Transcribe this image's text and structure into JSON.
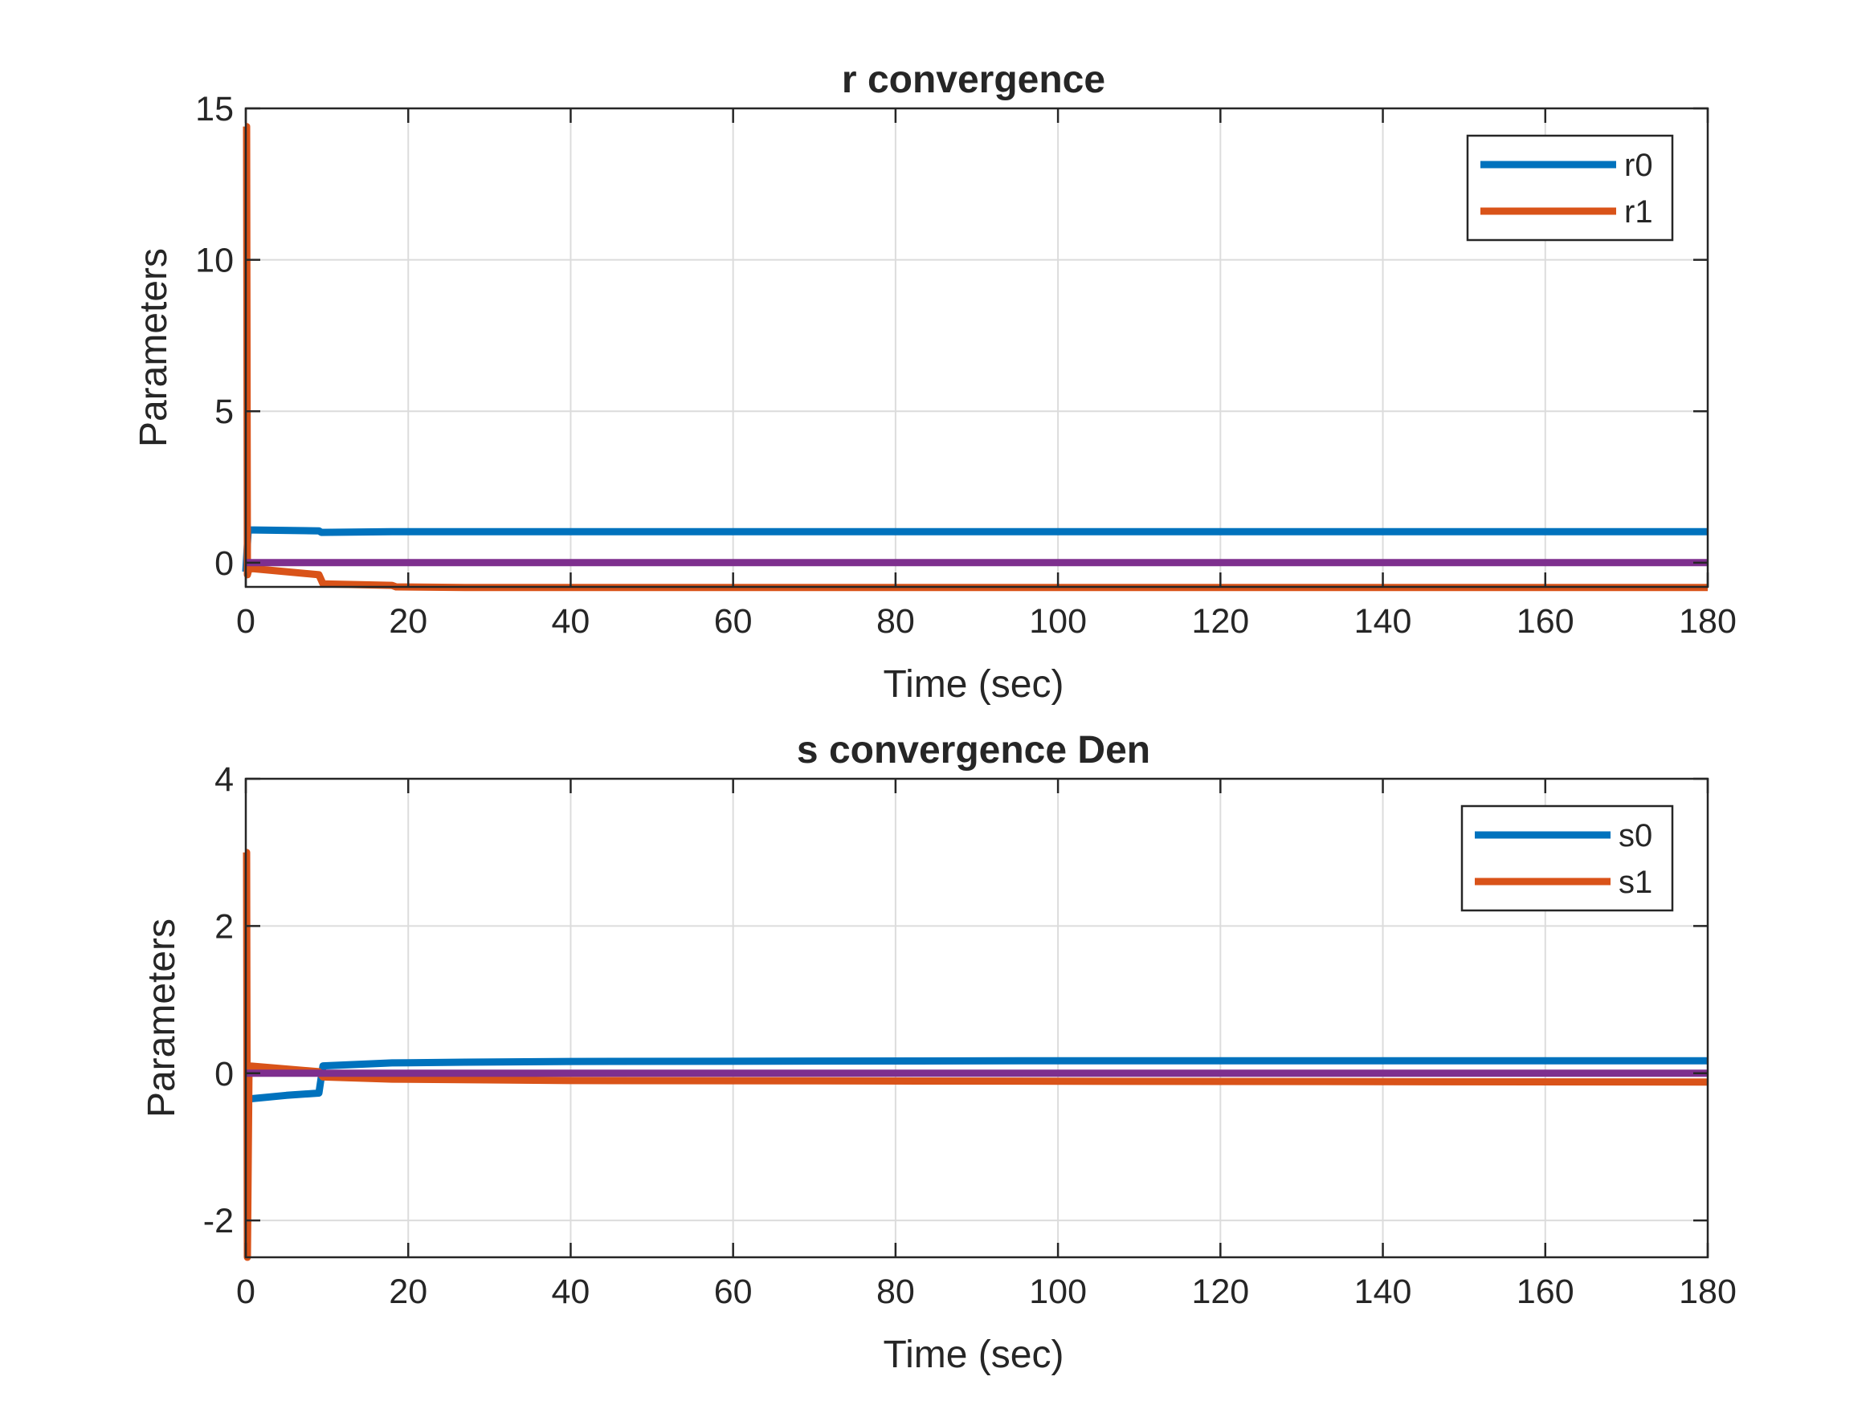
{
  "chart_data": [
    {
      "type": "line",
      "title": "r convergence",
      "xlabel": "Time (sec)",
      "ylabel": "Parameters",
      "xlim": [
        0,
        180
      ],
      "ylim": [
        -0.8,
        15
      ],
      "xticks": [
        0,
        20,
        40,
        60,
        80,
        100,
        120,
        140,
        160,
        180
      ],
      "yticks": [
        0,
        5,
        10,
        15
      ],
      "grid": true,
      "legend_position": "top-right",
      "series": [
        {
          "name": "r0",
          "color": "#0072BD",
          "x": [
            0,
            0.3,
            1,
            9,
            9.3,
            18,
            40,
            100,
            180
          ],
          "y": [
            -0.3,
            1.08,
            1.08,
            1.05,
            1.0,
            1.02,
            1.02,
            1.02,
            1.02
          ],
          "in_legend": true
        },
        {
          "name": "r1",
          "color": "#D95319",
          "x": [
            0,
            0.1,
            0.2,
            0.4,
            1,
            9,
            9.5,
            18,
            18.5,
            27,
            60,
            120,
            180
          ],
          "y": [
            14.4,
            14.4,
            -0.4,
            -0.2,
            -0.2,
            -0.4,
            -0.7,
            -0.75,
            -0.8,
            -0.82,
            -0.82,
            -0.82,
            -0.82
          ],
          "in_legend": true
        },
        {
          "color": "#7E2F8E",
          "x": [
            0,
            180
          ],
          "y": [
            0,
            0
          ],
          "in_legend": false
        }
      ]
    },
    {
      "type": "line",
      "title": "s convergence Den",
      "xlabel": "Time (sec)",
      "ylabel": "Parameters",
      "xlim": [
        0,
        180
      ],
      "ylim": [
        -2.5,
        4
      ],
      "xticks": [
        0,
        20,
        40,
        60,
        80,
        100,
        120,
        140,
        160,
        180
      ],
      "yticks": [
        -2,
        0,
        2,
        4
      ],
      "grid": true,
      "legend_position": "top-right",
      "series": [
        {
          "name": "s0",
          "color": "#0072BD",
          "x": [
            0,
            0.3,
            5,
            9,
            9.5,
            18,
            27,
            40,
            100,
            180
          ],
          "y": [
            -0.35,
            -0.35,
            -0.3,
            -0.27,
            0.1,
            0.14,
            0.15,
            0.16,
            0.17,
            0.17
          ],
          "in_legend": true
        },
        {
          "name": "s1",
          "color": "#D95319",
          "x": [
            0,
            0.1,
            0.2,
            0.4,
            9,
            9.5,
            18,
            40,
            180
          ],
          "y": [
            3.0,
            3.0,
            -2.5,
            0.1,
            0.02,
            -0.05,
            -0.08,
            -0.1,
            -0.12
          ],
          "in_legend": true
        },
        {
          "color": "#7E2F8E",
          "x": [
            0,
            180
          ],
          "y": [
            0,
            0
          ],
          "in_legend": false
        }
      ]
    }
  ]
}
